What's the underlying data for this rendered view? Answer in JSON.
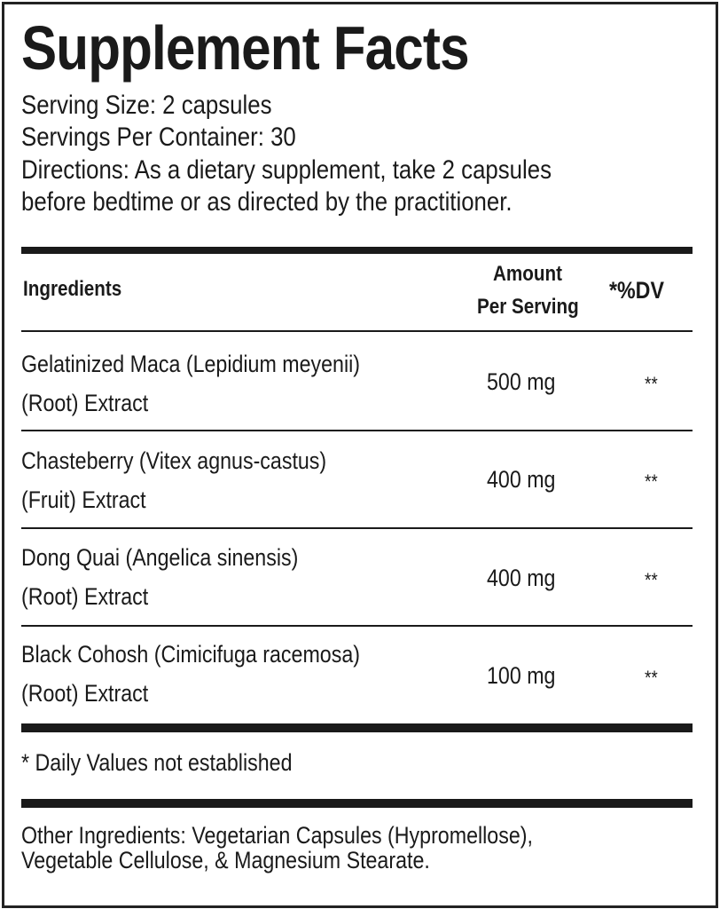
{
  "title": "Supplement Facts",
  "serving_size": "Serving Size: 2 capsules",
  "servings_per_container": "Servings Per Container: 30",
  "directions_line1": "Directions:  As a dietary supplement, take 2 capsules",
  "directions_line2": "before bedtime or as directed by the practitioner.",
  "table": {
    "headers": {
      "ingredients": "Ingredients",
      "amount_line1": "Amount",
      "amount_line2": "Per Serving",
      "dv": "*%DV"
    },
    "rows": [
      {
        "name_line1": "Gelatinized Maca (Lepidium meyenii)",
        "name_line2": "(Root) Extract",
        "amount": "500 mg",
        "dv": "**"
      },
      {
        "name_line1": "Chasteberry (Vitex agnus-castus)",
        "name_line2": "(Fruit) Extract",
        "amount": "400 mg",
        "dv": "**"
      },
      {
        "name_line1": "Dong Quai (Angelica sinensis)",
        "name_line2": "(Root) Extract",
        "amount": "400 mg",
        "dv": "**"
      },
      {
        "name_line1": "Black Cohosh (Cimicifuga racemosa)",
        "name_line2": "(Root) Extract",
        "amount": "100 mg",
        "dv": "**"
      }
    ]
  },
  "footnote": "* Daily Values not established",
  "other_ingredients_line1": "Other Ingredients: Vegetarian Capsules (Hypromellose),",
  "other_ingredients_line2": "Vegetable Cellulose, & Magnesium Stearate."
}
